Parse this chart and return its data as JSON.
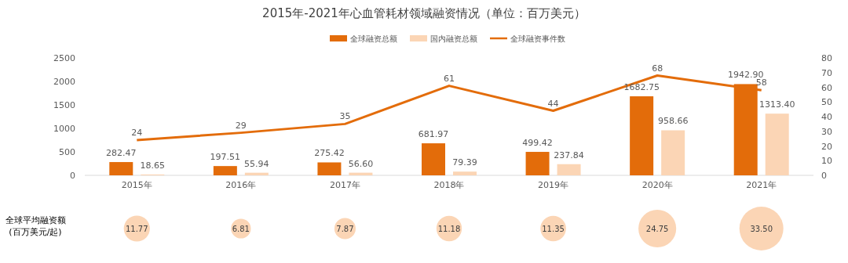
{
  "chart_data": [
    {
      "type": "bar",
      "title": "2015年-2021年心血管耗材领域融资情况（单位：百万美元）",
      "categories": [
        "2015年",
        "2016年",
        "2017年",
        "2018年",
        "2019年",
        "2020年",
        "2021年"
      ],
      "series": [
        {
          "name": "全球融资总额",
          "color": "#e36c0a",
          "values": [
            282.47,
            197.51,
            275.42,
            681.97,
            499.42,
            1682.75,
            1942.9
          ],
          "value_labels": [
            "282.47",
            "197.51",
            "275.42",
            "681.97",
            "499.42",
            "1682.75",
            "1942.90"
          ]
        },
        {
          "name": "国内融资总额",
          "color": "#fbd5b5",
          "values": [
            18.65,
            55.94,
            56.6,
            79.39,
            237.84,
            958.66,
            1313.4
          ],
          "value_labels": [
            "18.65",
            "55.94",
            "56.60",
            "79.39",
            "237.84",
            "958.66",
            "1313.40"
          ]
        },
        {
          "name": "全球融资事件数",
          "type": "line",
          "axis": "y2",
          "color": "#e36c0a",
          "values": [
            24,
            29,
            35,
            61,
            44,
            68,
            58
          ]
        }
      ],
      "ylim": [
        0,
        2500
      ],
      "yticks": [
        0,
        500,
        1000,
        1500,
        2000,
        2500
      ],
      "y2lim": [
        0,
        80
      ],
      "y2ticks": [
        0,
        10,
        20,
        30,
        40,
        50,
        60,
        70,
        80
      ],
      "data_labels": true,
      "legend": "top",
      "grid": false
    },
    {
      "type": "other",
      "ylabel": "全球平均融资额\n(百万美元/起)",
      "categories": [
        null,
        null,
        null,
        null,
        null,
        null,
        null
      ],
      "values": [
        11.77,
        6.81,
        7.87,
        11.18,
        11.35,
        24.75,
        33.5
      ],
      "value_labels": [
        "11.77",
        "6.81",
        "7.87",
        "11.18",
        "11.35",
        "24.75",
        "33.50"
      ],
      "color": "#fbd5b5"
    }
  ]
}
